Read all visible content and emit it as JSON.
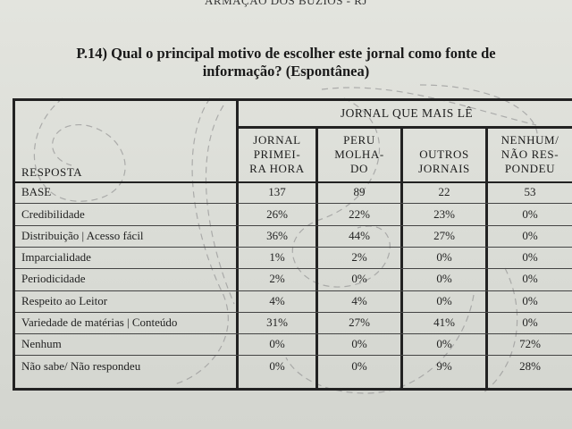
{
  "header_text": "ARMAÇÃO DOS BÚZIOS - RJ",
  "question": {
    "line1": "P.14) Qual o principal motivo de escolher este jornal como fonte de",
    "line2": "informação? (Espontânea)"
  },
  "table": {
    "group_header": "JORNAL QUE MAIS LÊ",
    "response_header": "RESPOSTA",
    "columns": [
      {
        "lines": [
          "JORNAL",
          "PRIMEI-",
          "RA HORA"
        ]
      },
      {
        "lines": [
          "PERU",
          "MOLHA-",
          "DO"
        ]
      },
      {
        "lines": [
          "OUTROS",
          "JORNAIS"
        ]
      },
      {
        "lines": [
          "NENHUM/",
          "NÃO RES-",
          "PONDEU"
        ]
      }
    ],
    "rows": [
      {
        "label": "BASE",
        "values": [
          "137",
          "89",
          "22",
          "53"
        ]
      },
      {
        "label": "Credibilidade",
        "values": [
          "26%",
          "22%",
          "23%",
          "0%"
        ]
      },
      {
        "label": "Distribuição | Acesso fácil",
        "values": [
          "36%",
          "44%",
          "27%",
          "0%"
        ]
      },
      {
        "label": "Imparcialidade",
        "values": [
          "1%",
          "2%",
          "0%",
          "0%"
        ]
      },
      {
        "label": "Periodicidade",
        "values": [
          "2%",
          "0%",
          "0%",
          "0%"
        ]
      },
      {
        "label": "Respeito ao Leitor",
        "values": [
          "4%",
          "4%",
          "0%",
          "0%"
        ]
      },
      {
        "label": "Variedade de matérias | Conteúdo",
        "values": [
          "31%",
          "27%",
          "41%",
          "0%"
        ]
      },
      {
        "label": "Nenhum",
        "values": [
          "0%",
          "0%",
          "0%",
          "72%"
        ]
      },
      {
        "label": "Não sabe/ Não respondeu",
        "values": [
          "0%",
          "0%",
          "9%",
          "28%"
        ]
      }
    ]
  }
}
